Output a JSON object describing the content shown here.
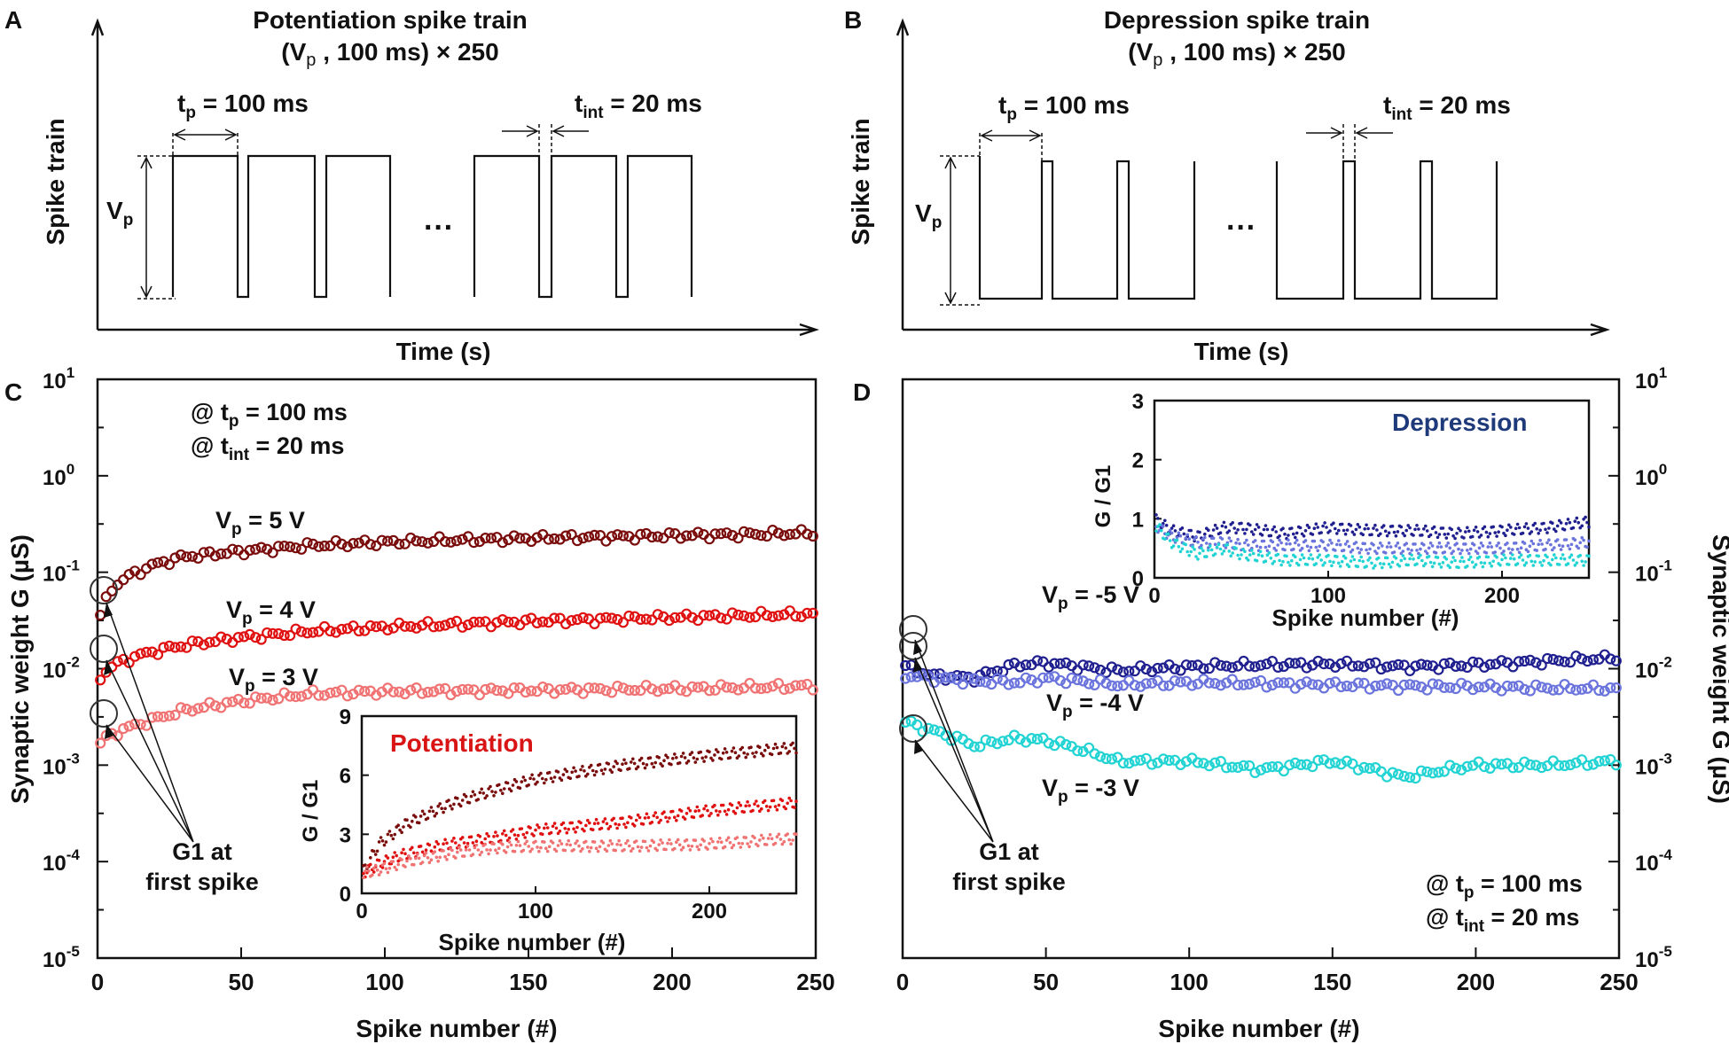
{
  "panels": {
    "A": {
      "letter": "A",
      "title1": "Potentiation spike train",
      "title2_pre": "(V",
      "title2_sub": "p",
      "title2_post": " , 100 ms) × 250",
      "ylabel": "Spike train",
      "xlabel": "Time (s)",
      "tp_main": "t",
      "tp_sub": "p",
      "tp_val": " = 100 ms",
      "tint_main": "t",
      "tint_sub": "int",
      "tint_val": " = 20 ms",
      "vp_main": "V",
      "vp_sub": "p",
      "ellipsis": "···"
    },
    "B": {
      "letter": "B",
      "title1": "Depression spike train",
      "title2_pre": "(V",
      "title2_sub": "p",
      "title2_post": " , 100 ms) × 250",
      "ylabel": "Spike train",
      "xlabel": "Time (s)",
      "tp_main": "t",
      "tp_sub": "p",
      "tp_val": " = 100 ms",
      "tint_main": "t",
      "tint_sub": "int",
      "tint_val": " = 20 ms",
      "vp_main": "V",
      "vp_sub": "p",
      "ellipsis": "···"
    },
    "C": {
      "letter": "C",
      "cond1_pre": "@ t",
      "cond1_sub": "p",
      "cond1_post": " = 100 ms",
      "cond2_pre": "@ t",
      "cond2_sub": "int",
      "cond2_post": " = 20 ms",
      "g1_line1": "G1 at",
      "g1_line2": "first spike",
      "inset_title": "Potentiation",
      "labels": [
        {
          "pre": "V",
          "sub": "p",
          "post": " = 5 V"
        },
        {
          "pre": "V",
          "sub": "p",
          "post": " = 4 V"
        },
        {
          "pre": "V",
          "sub": "p",
          "post": " = 3 V"
        }
      ]
    },
    "D": {
      "letter": "D",
      "cond1_pre": "@ t",
      "cond1_sub": "p",
      "cond1_post": " = 100 ms",
      "cond2_pre": "@ t",
      "cond2_sub": "int",
      "cond2_post": " = 20 ms",
      "g1_line1": "G1 at",
      "g1_line2": "first spike",
      "inset_title": "Depression",
      "labels": [
        {
          "pre": "V",
          "sub": "p",
          "post": " = -5 V"
        },
        {
          "pre": "V",
          "sub": "p",
          "post": " = -4 V"
        },
        {
          "pre": "V",
          "sub": "p",
          "post": " = -3 V"
        }
      ]
    }
  },
  "chart_data": [
    {
      "id": "C",
      "type": "scatter",
      "title": "",
      "xlabel": "Spike number (#)",
      "ylabel": "Synaptic weight G  (µS)",
      "xlim": [
        0,
        250
      ],
      "ylim": [
        1e-05,
        10
      ],
      "yscale": "log",
      "xticks": [
        0,
        50,
        100,
        150,
        200,
        250
      ],
      "ytick_bases": [
        "10",
        "10",
        "10",
        "10",
        "10",
        "10",
        "10"
      ],
      "ytick_exps": [
        "1",
        "0",
        "-1",
        "-2",
        "-3",
        "-4",
        "-5"
      ],
      "yticks": [
        10,
        1,
        0.1,
        0.01,
        0.001,
        0.0001,
        1e-05
      ],
      "series": [
        {
          "name": "Vp = 5 V",
          "color": "#7a0b0b",
          "x": [
            1,
            5,
            10,
            20,
            30,
            50,
            75,
            100,
            150,
            200,
            250
          ],
          "values": [
            0.035,
            0.068,
            0.088,
            0.12,
            0.145,
            0.165,
            0.19,
            0.205,
            0.225,
            0.24,
            0.255
          ]
        },
        {
          "name": "Vp = 4 V",
          "color": "#e01010",
          "x": [
            1,
            5,
            10,
            20,
            30,
            50,
            75,
            100,
            150,
            200,
            250
          ],
          "values": [
            0.0082,
            0.0105,
            0.0125,
            0.0152,
            0.0175,
            0.021,
            0.0245,
            0.027,
            0.031,
            0.034,
            0.037
          ]
        },
        {
          "name": "Vp = 3 V",
          "color": "#f07272",
          "x": [
            1,
            5,
            10,
            20,
            30,
            50,
            75,
            100,
            150,
            200,
            250
          ],
          "values": [
            0.0017,
            0.0021,
            0.0024,
            0.003,
            0.0037,
            0.0046,
            0.0055,
            0.0058,
            0.006,
            0.0062,
            0.0066
          ]
        }
      ],
      "inset": {
        "xlabel": "Spike number (#)",
        "ylabel": "G / G1",
        "xlim": [
          0,
          250
        ],
        "ylim": [
          0,
          9
        ],
        "xticks": [
          0,
          100,
          200
        ],
        "yticks": [
          0,
          3,
          6,
          9
        ],
        "series": [
          {
            "name": "Vp = 5 V",
            "color": "#7a0b0b",
            "x": [
              0,
              10,
              25,
              50,
              75,
              100,
              150,
              200,
              250
            ],
            "values": [
              1,
              2.5,
              3.5,
              4.5,
              5.2,
              5.8,
              6.5,
              7.0,
              7.4
            ]
          },
          {
            "name": "Vp = 4 V",
            "color": "#e01010",
            "x": [
              0,
              10,
              25,
              50,
              75,
              100,
              150,
              200,
              250
            ],
            "values": [
              1,
              1.5,
              2.0,
              2.5,
              2.8,
              3.2,
              3.6,
              4.2,
              4.6
            ]
          },
          {
            "name": "Vp = 3 V",
            "color": "#f07272",
            "x": [
              0,
              10,
              25,
              50,
              75,
              100,
              150,
              200,
              250
            ],
            "values": [
              1,
              1.2,
              1.6,
              2.0,
              2.3,
              2.4,
              2.4,
              2.5,
              2.8
            ]
          }
        ]
      }
    },
    {
      "id": "D",
      "type": "scatter",
      "title": "",
      "xlabel": "Spike number (#)",
      "ylabel": "Synaptic weight G (µS)",
      "xlim": [
        0,
        250
      ],
      "ylim": [
        1e-05,
        10
      ],
      "yscale": "log",
      "yaxis_side": "right",
      "xticks": [
        0,
        50,
        100,
        150,
        200,
        250
      ],
      "ytick_bases": [
        "10",
        "10",
        "10",
        "10",
        "10",
        "10",
        "10"
      ],
      "ytick_exps": [
        "1",
        "0",
        "-1",
        "-2",
        "-3",
        "-4",
        "-5"
      ],
      "yticks": [
        10,
        1,
        0.1,
        0.01,
        0.001,
        0.0001,
        1e-05
      ],
      "series": [
        {
          "name": "Vp = -5 V",
          "color": "#1f1f8f",
          "x": [
            1,
            10,
            25,
            40,
            50,
            75,
            100,
            125,
            150,
            175,
            200,
            225,
            250
          ],
          "values": [
            0.0105,
            0.0085,
            0.008,
            0.011,
            0.0115,
            0.0095,
            0.0105,
            0.011,
            0.0112,
            0.0105,
            0.011,
            0.012,
            0.013
          ]
        },
        {
          "name": "Vp = -4 V",
          "color": "#6a74dc",
          "x": [
            1,
            10,
            25,
            40,
            50,
            75,
            100,
            125,
            150,
            175,
            200,
            225,
            250
          ],
          "values": [
            0.0085,
            0.008,
            0.0075,
            0.0072,
            0.008,
            0.0068,
            0.0072,
            0.007,
            0.0068,
            0.0066,
            0.0065,
            0.0063,
            0.0062
          ]
        },
        {
          "name": "Vp = -3 V",
          "color": "#22d3d3",
          "x": [
            1,
            10,
            25,
            40,
            50,
            75,
            100,
            125,
            150,
            175,
            200,
            225,
            250
          ],
          "values": [
            0.0028,
            0.0023,
            0.0016,
            0.0019,
            0.0018,
            0.0011,
            0.0011,
            0.0009,
            0.0011,
            0.00075,
            0.001,
            0.001,
            0.0011
          ]
        }
      ],
      "inset": {
        "xlabel": "Spike number (#)",
        "ylabel": "G / G1",
        "xlim": [
          0,
          250
        ],
        "ylim": [
          0,
          3
        ],
        "xticks": [
          0,
          100,
          200
        ],
        "yticks": [
          0,
          1,
          2,
          3
        ],
        "series": [
          {
            "name": "Vp = -5 V",
            "color": "#1f1f8f",
            "x": [
              0,
              10,
              25,
              40,
              50,
              75,
              100,
              125,
              150,
              175,
              200,
              225,
              250
            ],
            "values": [
              1.0,
              0.8,
              0.7,
              0.85,
              0.85,
              0.75,
              0.85,
              0.8,
              0.8,
              0.75,
              0.8,
              0.85,
              0.95
            ]
          },
          {
            "name": "Vp = -4 V",
            "color": "#6a74dc",
            "x": [
              0,
              10,
              25,
              40,
              50,
              75,
              100,
              125,
              150,
              175,
              200,
              225,
              250
            ],
            "values": [
              0.9,
              0.7,
              0.6,
              0.6,
              0.55,
              0.55,
              0.55,
              0.5,
              0.5,
              0.5,
              0.5,
              0.55,
              0.6
            ]
          },
          {
            "name": "Vp = -3 V",
            "color": "#22d3d3",
            "x": [
              0,
              10,
              25,
              40,
              50,
              75,
              100,
              125,
              150,
              175,
              200,
              225,
              250
            ],
            "values": [
              0.9,
              0.6,
              0.4,
              0.5,
              0.4,
              0.3,
              0.3,
              0.25,
              0.3,
              0.25,
              0.3,
              0.3,
              0.3
            ]
          }
        ]
      }
    }
  ]
}
